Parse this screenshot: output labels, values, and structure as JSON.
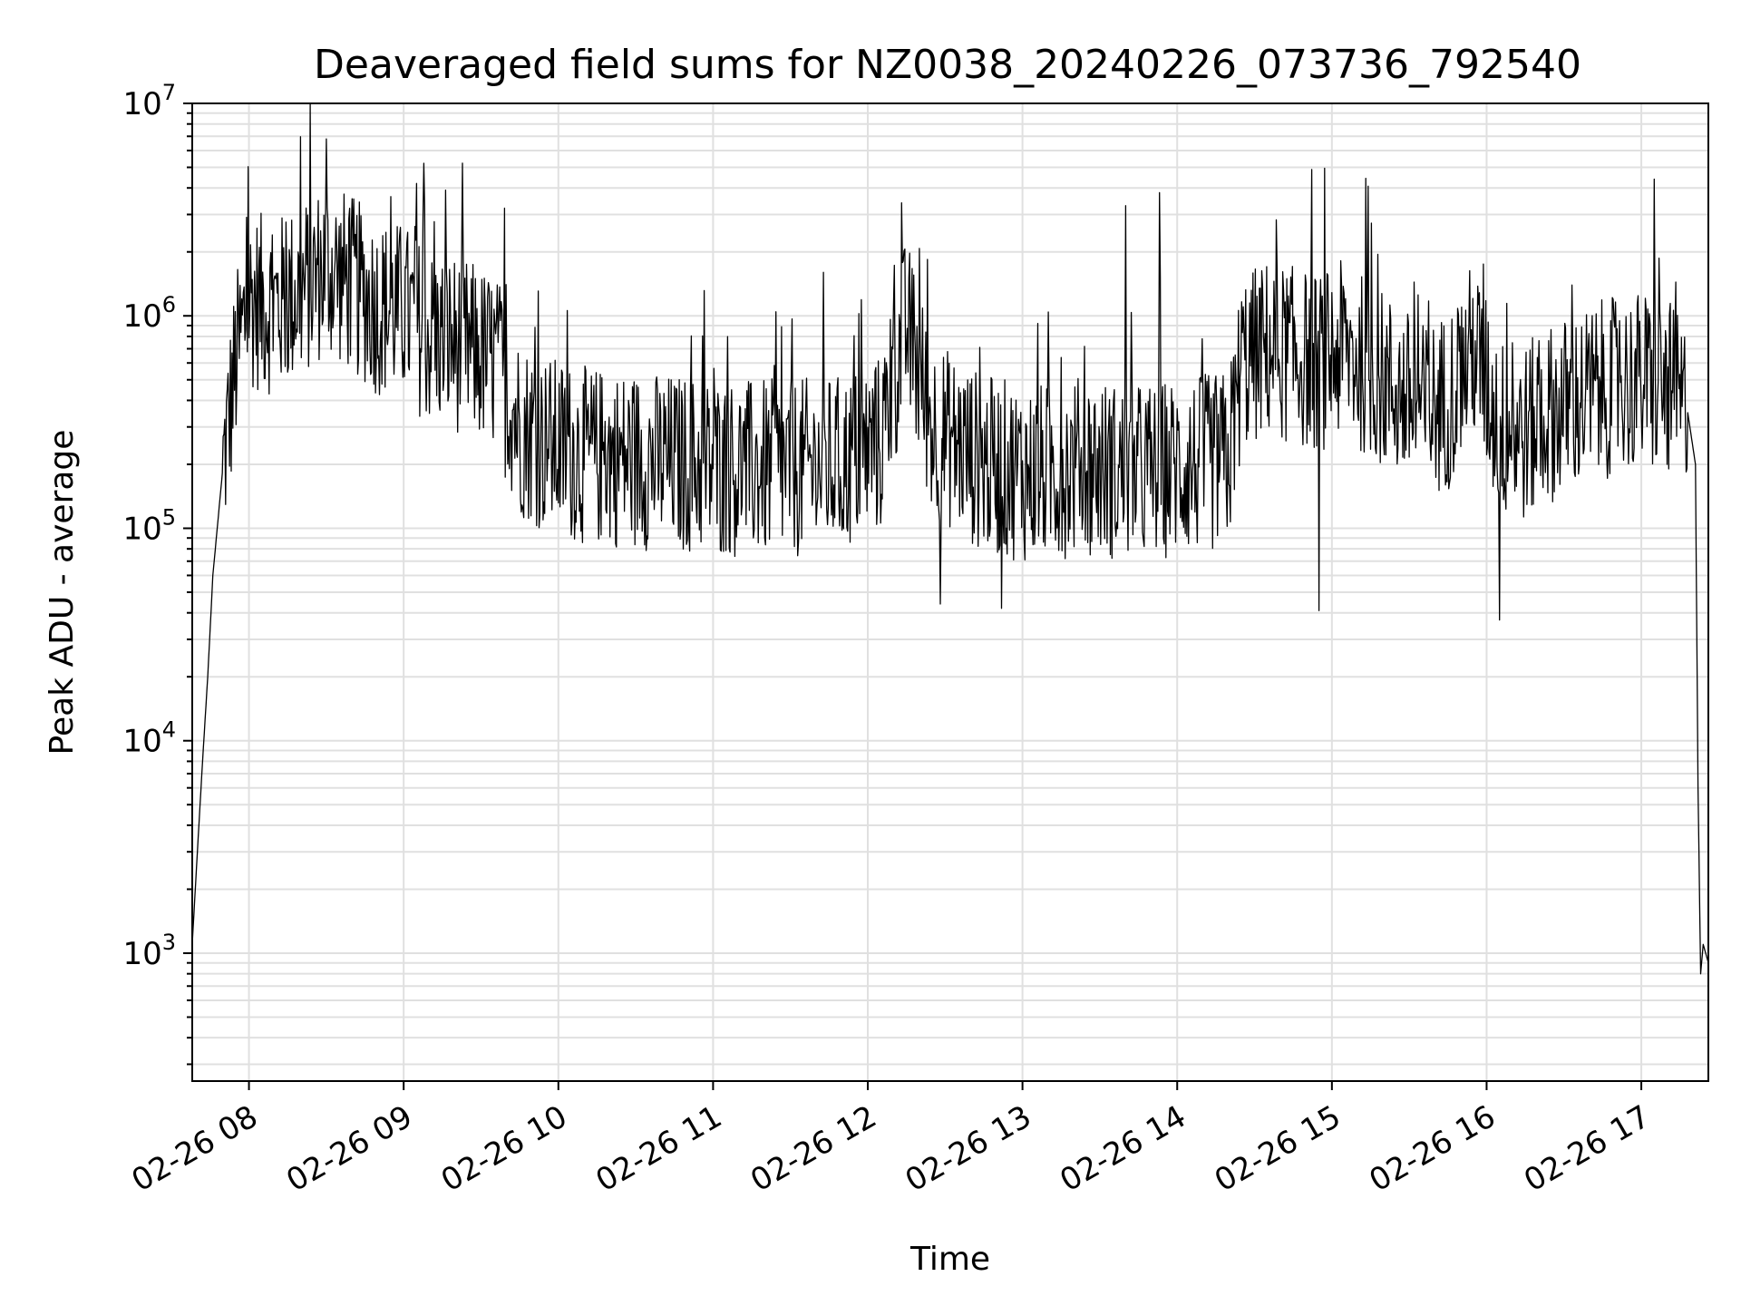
{
  "chart_data": {
    "type": "line",
    "title": "Deaveraged field sums for NZ0038_20240226_073736_792540",
    "xlabel": "Time",
    "ylabel": "Peak ADU - average",
    "yscale": "log",
    "ylim": [
      250,
      10000000
    ],
    "xlim": [
      "02-26 07:38",
      "02-26 17:26"
    ],
    "grid": true,
    "line_color": "#000000",
    "grid_color": "#e0e0e0",
    "x_ticks": [
      "02-26 08",
      "02-26 09",
      "02-26 10",
      "02-26 11",
      "02-26 12",
      "02-26 13",
      "02-26 14",
      "02-26 15",
      "02-26 16",
      "02-26 17"
    ],
    "y_ticks": [
      {
        "base": "10",
        "exp": "3",
        "value": 1000
      },
      {
        "base": "10",
        "exp": "4",
        "value": 10000
      },
      {
        "base": "10",
        "exp": "5",
        "value": 100000
      },
      {
        "base": "10",
        "exp": "6",
        "value": 1000000
      },
      {
        "base": "10",
        "exp": "7",
        "value": 10000000
      }
    ],
    "series": [
      {
        "color": "#000000",
        "x": [
          "07:38",
          "07:40",
          "07:42",
          "07:44",
          "07:46",
          "07:50",
          "07:55",
          "08:00",
          "08:10",
          "08:20",
          "08:30",
          "08:40",
          "08:50",
          "09:00",
          "09:10",
          "09:20",
          "09:30",
          "09:36",
          "09:45",
          "09:55",
          "10:10",
          "10:30",
          "10:50",
          "11:10",
          "11:30",
          "11:50",
          "12:05",
          "12:10",
          "12:15",
          "12:25",
          "12:45",
          "13:05",
          "13:25",
          "13:40",
          "13:55",
          "14:10",
          "14:20",
          "14:25",
          "14:35",
          "14:45",
          "14:55",
          "15:05",
          "15:15",
          "15:25",
          "15:35",
          "15:45",
          "15:55",
          "16:05",
          "16:15",
          "16:25",
          "16:45",
          "17:00",
          "17:10",
          "17:18",
          "17:21",
          "17:22",
          "17:23",
          "17:24",
          "17:26"
        ],
        "values": [
          1100,
          3000,
          8000,
          20000,
          60000,
          200000,
          600000,
          1200000,
          1100000,
          1300000,
          1700000,
          1400000,
          1100000,
          1050000,
          800000,
          750000,
          650000,
          600000,
          300000,
          250000,
          220000,
          210000,
          200000,
          190000,
          190000,
          200000,
          250000,
          500000,
          900000,
          300000,
          200000,
          180000,
          200000,
          180000,
          190000,
          200000,
          210000,
          600000,
          700000,
          650000,
          600000,
          700000,
          550000,
          450000,
          350000,
          400000,
          700000,
          300000,
          280000,
          350000,
          450000,
          500000,
          450000,
          350000,
          200000,
          6000,
          800,
          1100,
          900
        ],
        "spikes": [
          {
            "x": "08:30",
            "value": 6800000
          },
          {
            "x": "09:05",
            "value": 4200000
          },
          {
            "x": "12:13",
            "value": 3400000
          },
          {
            "x": "13:40",
            "value": 3300000
          },
          {
            "x": "13:53",
            "value": 3800000
          },
          {
            "x": "14:55",
            "value": 3400000
          },
          {
            "x": "17:05",
            "value": 4400000
          },
          {
            "x": "12:28",
            "value": 44000
          },
          {
            "x": "12:52",
            "value": 42000
          },
          {
            "x": "14:55",
            "value": 41000
          },
          {
            "x": "16:05",
            "value": 37000
          }
        ]
      }
    ]
  }
}
